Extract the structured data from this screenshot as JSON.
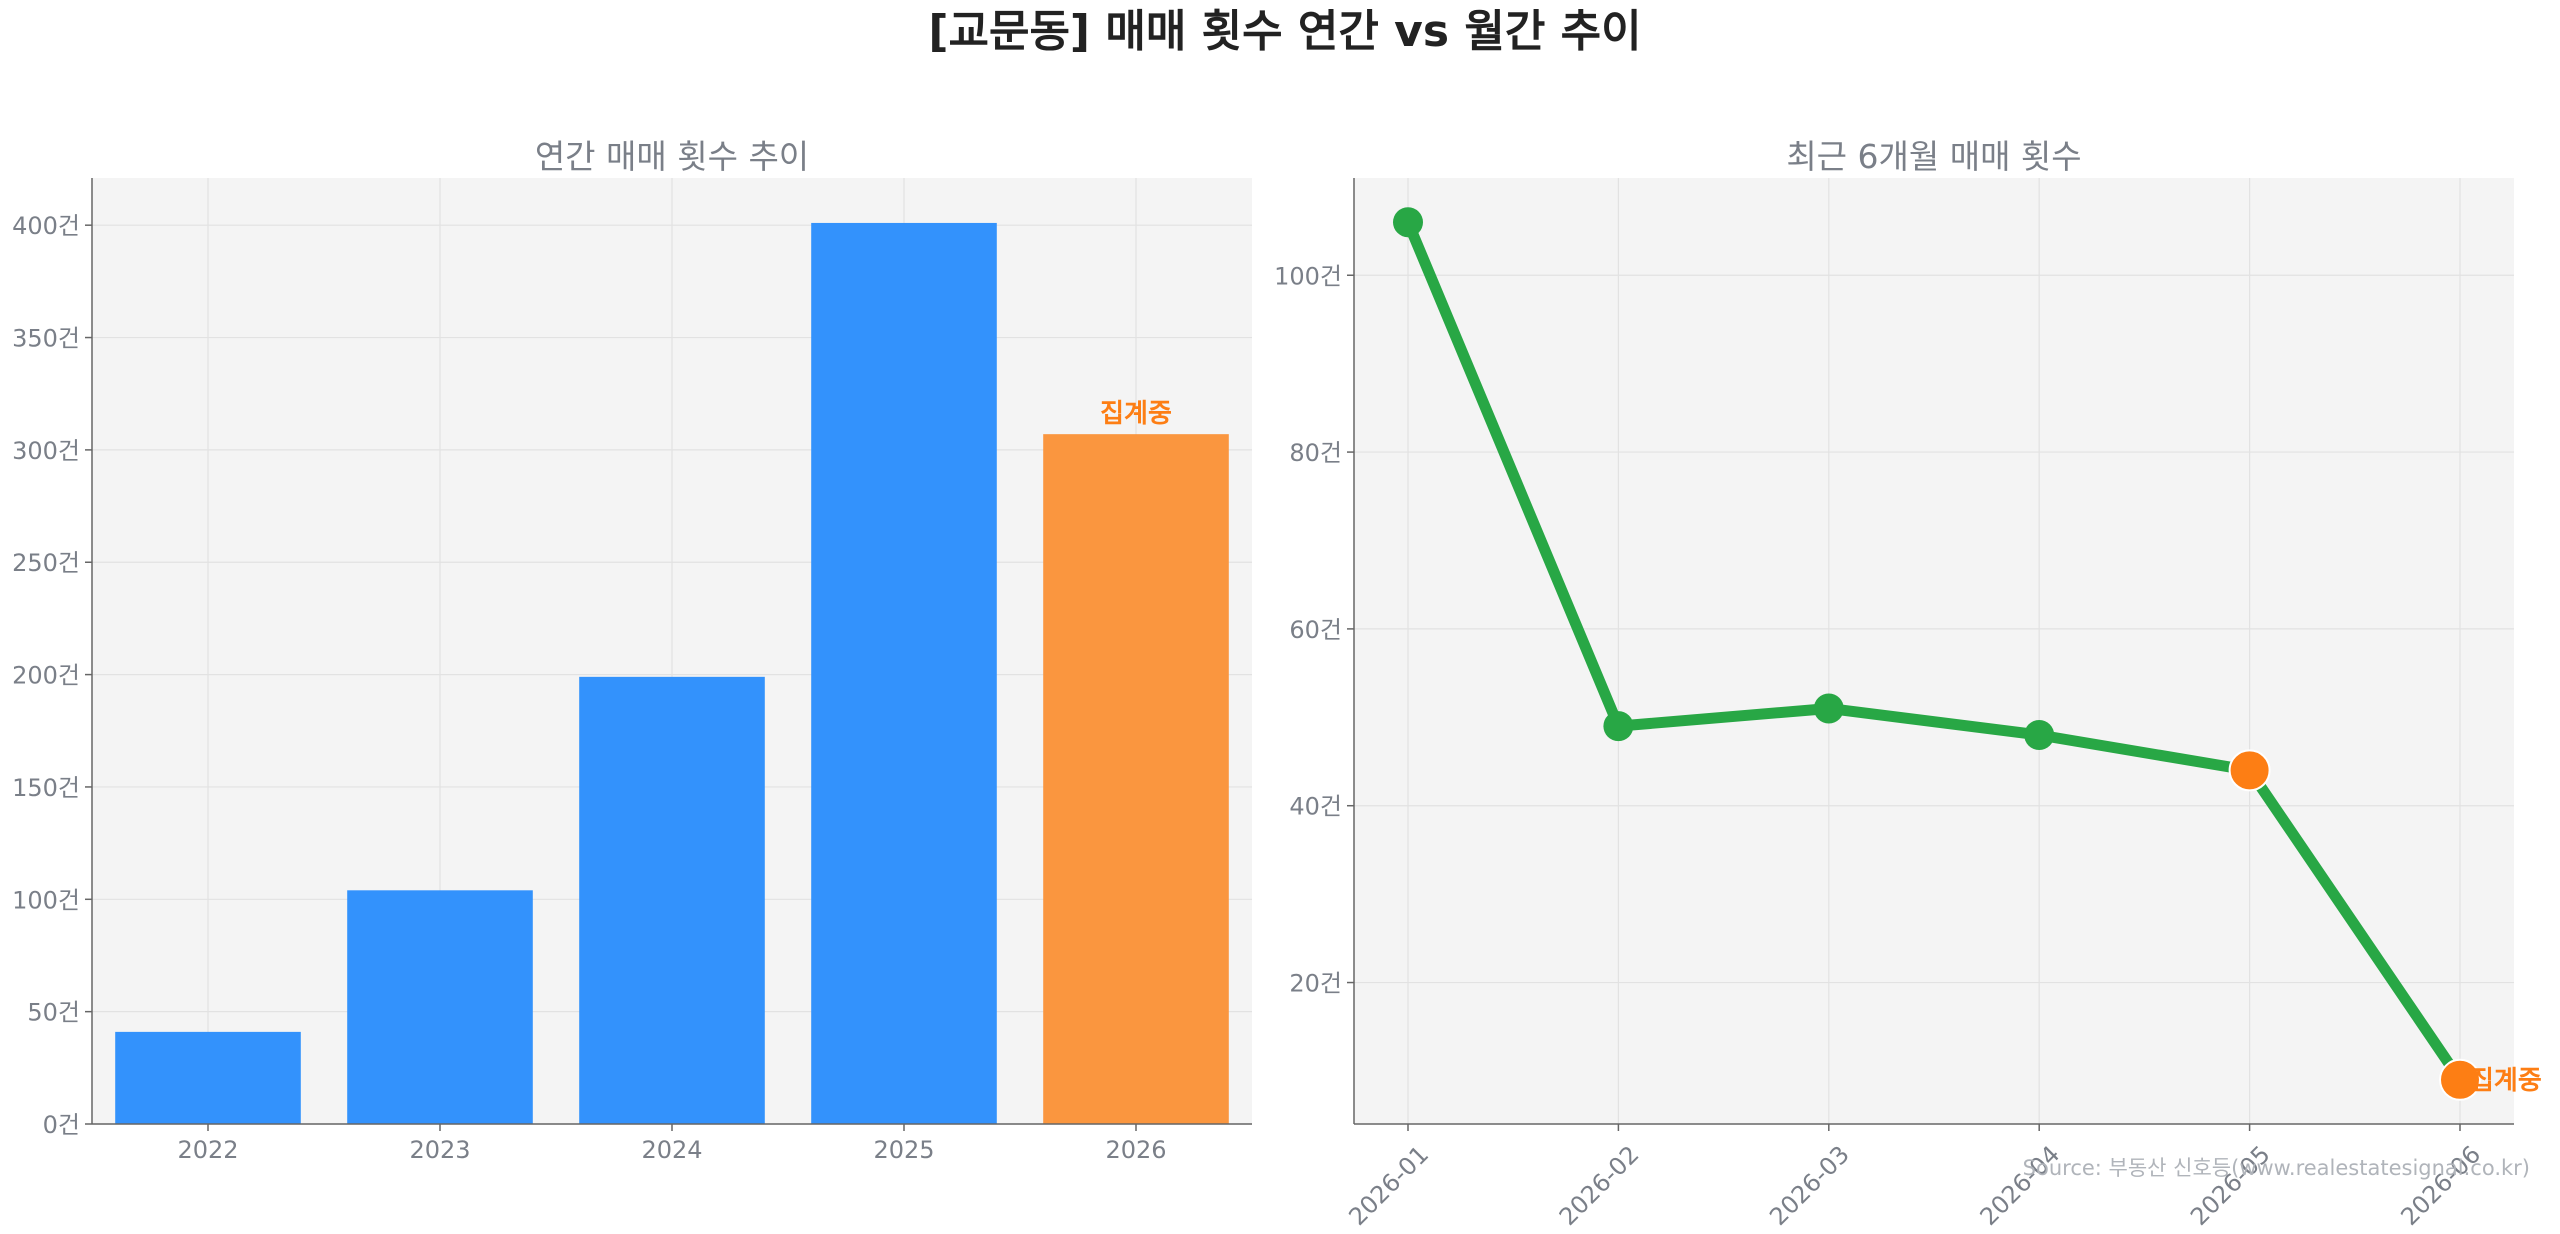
{
  "suptitle": "[교문동] 매매 횟수 연간 vs 월간 추이",
  "source": "Source: 부동산 신호등(www.realestatesignal.co.kr)",
  "colors": {
    "bar": "#3392fc",
    "bar_highlight": "#fa963f",
    "line": "#28a745",
    "highlight": "#fd7e14",
    "panel_bg": "#f4f4f4"
  },
  "chart_data": [
    {
      "type": "bar",
      "title": "연간 매매 횟수 추이",
      "categories": [
        "2022",
        "2023",
        "2024",
        "2025",
        "2026"
      ],
      "values": [
        41,
        104,
        199,
        401,
        307
      ],
      "ylim": [
        0,
        421
      ],
      "yticks": [
        0,
        50,
        100,
        150,
        200,
        250,
        300,
        350,
        400
      ],
      "ytick_suffix": "건",
      "highlight_index": 4,
      "annotation": {
        "index": 4,
        "text": "집계중"
      },
      "grid": true
    },
    {
      "type": "line",
      "title": "최근 6개월 매매 횟수",
      "categories": [
        "2026-01",
        "2026-02",
        "2026-03",
        "2026-04",
        "2026-05",
        "2026-06"
      ],
      "values": [
        106,
        49,
        51,
        48,
        44,
        9
      ],
      "ylim": [
        4,
        111
      ],
      "yticks": [
        20,
        40,
        60,
        80,
        100
      ],
      "ytick_suffix": "건",
      "highlight_indices": [
        4,
        5
      ],
      "annotation": {
        "index": 5,
        "text": "집계중"
      },
      "grid": true
    }
  ]
}
